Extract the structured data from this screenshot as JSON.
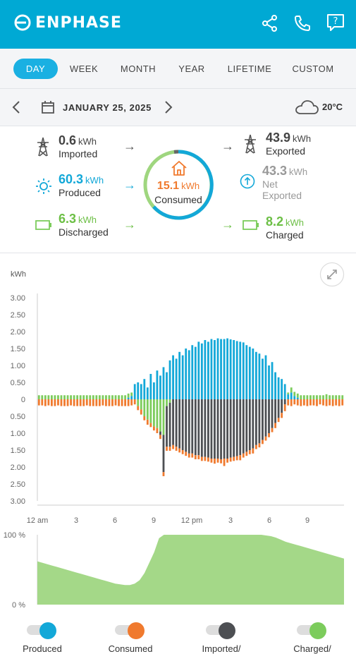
{
  "header": {
    "brand": "ENPHASE",
    "icons": [
      "share-icon",
      "phone-icon",
      "help-icon"
    ]
  },
  "tabs": [
    {
      "label": "DAY",
      "active": true
    },
    {
      "label": "WEEK",
      "active": false
    },
    {
      "label": "MONTH",
      "active": false
    },
    {
      "label": "YEAR",
      "active": false
    },
    {
      "label": "LIFETIME",
      "active": false
    },
    {
      "label": "CUSTOM",
      "active": false
    }
  ],
  "date_bar": {
    "date": "JANUARY 25, 2025",
    "temperature": "20°C"
  },
  "summary": {
    "imported": {
      "value": "0.6",
      "unit": "kWh",
      "label": "Imported"
    },
    "produced": {
      "value": "60.3",
      "unit": "kWh",
      "label": "Produced"
    },
    "discharged": {
      "value": "6.3",
      "unit": "kWh",
      "label": "Discharged"
    },
    "consumed": {
      "value": "15.1",
      "unit": "kWh",
      "label": "Consumed"
    },
    "exported": {
      "value": "43.9",
      "unit": "kWh",
      "label": "Exported"
    },
    "net_exported": {
      "value": "43.3",
      "unit": "kWh",
      "label_line1": "Net",
      "label_line2": "Exported"
    },
    "charged": {
      "value": "8.2",
      "unit": "kWh",
      "label": "Charged"
    }
  },
  "colors": {
    "produced": "#13a8d8",
    "consumed": "#f07a2e",
    "imported": "#4d4f53",
    "charged": "#7ccc5c",
    "header": "#00a9d4"
  },
  "chart_data": [
    {
      "type": "bar",
      "ylabel": "kWh",
      "yticks": [
        "3.00",
        "2.50",
        "2.00",
        "1.50",
        "1.00",
        "0.50",
        "0",
        "0.50",
        "1.00",
        "1.50",
        "2.00",
        "2.50",
        "3.00"
      ],
      "xticks": [
        "12 am",
        "3",
        "6",
        "9",
        "12 pm",
        "3",
        "6",
        "9"
      ],
      "ylim": [
        -3,
        3
      ],
      "x_start_hour": 0,
      "x_step_minutes": 15,
      "series": [
        {
          "name": "Produced",
          "values": [
            0,
            0,
            0,
            0,
            0,
            0,
            0,
            0,
            0,
            0,
            0,
            0,
            0,
            0,
            0,
            0,
            0,
            0,
            0,
            0,
            0,
            0,
            0,
            0,
            0,
            0,
            0,
            0,
            0.05,
            0.1,
            0.45,
            0.5,
            0.45,
            0.6,
            0.35,
            0.75,
            0.5,
            0.85,
            0.7,
            0.95,
            0.8,
            1.15,
            1.3,
            1.2,
            1.4,
            1.3,
            1.5,
            1.45,
            1.6,
            1.55,
            1.7,
            1.65,
            1.75,
            1.7,
            1.78,
            1.75,
            1.8,
            1.78,
            1.78,
            1.8,
            1.77,
            1.75,
            1.72,
            1.7,
            1.68,
            1.6,
            1.55,
            1.5,
            1.4,
            1.35,
            1.2,
            1.3,
            1.0,
            1.1,
            0.8,
            0.65,
            0.6,
            0.45,
            0.15,
            0.2,
            0.1,
            0.05,
            0,
            0,
            0,
            0,
            0,
            0,
            0,
            0,
            0,
            0,
            0,
            0,
            0,
            0
          ]
        },
        {
          "name": "Consumed",
          "values": [
            -0.18,
            -0.18,
            -0.2,
            -0.18,
            -0.2,
            -0.2,
            -0.18,
            -0.2,
            -0.2,
            -0.2,
            -0.18,
            -0.2,
            -0.2,
            -0.2,
            -0.2,
            -0.18,
            -0.2,
            -0.2,
            -0.2,
            -0.2,
            -0.18,
            -0.2,
            -0.2,
            -0.2,
            -0.18,
            -0.2,
            -0.2,
            -0.2,
            -0.2,
            -0.18,
            -0.15,
            -0.12,
            -0.15,
            -0.12,
            -0.15,
            -0.12,
            -0.12,
            -0.15,
            -0.12,
            -0.12,
            -0.12,
            -0.12,
            -0.12,
            -0.12,
            -0.12,
            -0.12,
            -0.12,
            -0.12,
            -0.12,
            -0.12,
            -0.12,
            -0.12,
            -0.12,
            -0.12,
            -0.12,
            -0.15,
            -0.12,
            -0.12,
            -0.22,
            -0.12,
            -0.12,
            -0.12,
            -0.12,
            -0.15,
            -0.12,
            -0.12,
            -0.12,
            -0.15,
            -0.12,
            -0.12,
            -0.12,
            -0.12,
            -0.12,
            -0.12,
            -0.15,
            -0.12,
            -0.15,
            -0.2,
            -0.18,
            -0.2,
            -0.15,
            -0.18,
            -0.2,
            -0.18,
            -0.2,
            -0.18,
            -0.18,
            -0.2,
            -0.15,
            -0.18,
            -0.2,
            -0.18,
            -0.2,
            -0.18,
            -0.2,
            -0.18
          ]
        },
        {
          "name": "Imported/Exported",
          "values": [
            0,
            0,
            0,
            0,
            0,
            0,
            0,
            0,
            0,
            0,
            0,
            0,
            0,
            0,
            0,
            0,
            0,
            0,
            0,
            0,
            0,
            0,
            0,
            0,
            0,
            0,
            0,
            0,
            0,
            0,
            0,
            0,
            0,
            0,
            0,
            0,
            0,
            0,
            -0.1,
            -1.1,
            -1.2,
            -1.3,
            -1.35,
            -1.4,
            -1.45,
            -1.5,
            -1.55,
            -1.6,
            -1.6,
            -1.65,
            -1.65,
            -1.7,
            -1.7,
            -1.72,
            -1.75,
            -1.75,
            -1.75,
            -1.77,
            -1.75,
            -1.75,
            -1.72,
            -1.7,
            -1.68,
            -1.65,
            -1.6,
            -1.55,
            -1.5,
            -1.45,
            -1.35,
            -1.3,
            -1.2,
            -1.1,
            -1.0,
            -0.85,
            -0.7,
            -0.55,
            -0.4,
            -0.15,
            0,
            0,
            0,
            0,
            0,
            0,
            0,
            0,
            0,
            0,
            0,
            0,
            0,
            0,
            0,
            0,
            0,
            0
          ]
        },
        {
          "name": "Charged/Discharged",
          "values": [
            0.12,
            0.12,
            0.12,
            0.12,
            0.12,
            0.12,
            0.12,
            0.12,
            0.12,
            0.12,
            0.12,
            0.12,
            0.12,
            0.12,
            0.12,
            0.12,
            0.12,
            0.12,
            0.12,
            0.12,
            0.12,
            0.12,
            0.12,
            0.12,
            0.12,
            0.12,
            0.12,
            0.12,
            0.12,
            0.1,
            0,
            -0.2,
            -0.3,
            -0.5,
            -0.6,
            -0.7,
            -0.8,
            -0.85,
            -0.95,
            -1.05,
            -0.2,
            -0.1,
            0,
            0,
            0,
            0,
            0,
            0,
            0,
            0,
            0,
            0,
            0,
            0,
            0,
            0,
            0,
            0,
            0,
            0,
            0,
            0,
            0,
            0,
            0,
            0,
            0,
            0,
            0,
            0,
            0,
            0,
            0,
            0,
            0,
            0,
            0,
            0,
            0.05,
            0.15,
            0.12,
            0.12,
            0.12,
            0.12,
            0.12,
            0.12,
            0.12,
            0.12,
            0.12,
            0.12,
            0.15,
            0.12,
            0.12,
            0.12,
            0.12,
            0.12
          ]
        }
      ]
    },
    {
      "type": "area",
      "yticks": [
        "100 %",
        "0 %"
      ],
      "ylim": [
        0,
        100
      ],
      "values": [
        62,
        60,
        58,
        56,
        54,
        52,
        50,
        48,
        46,
        44,
        42,
        40,
        38,
        36,
        34,
        32,
        30,
        29,
        28,
        28,
        30,
        35,
        45,
        60,
        75,
        95,
        100,
        100,
        100,
        100,
        100,
        100,
        100,
        100,
        100,
        100,
        100,
        100,
        100,
        100,
        100,
        100,
        100,
        100,
        100,
        100,
        100,
        99,
        98,
        96,
        93,
        90,
        88,
        86,
        84,
        82,
        80,
        78,
        76,
        74,
        72,
        70,
        68,
        66
      ]
    }
  ],
  "legend": [
    {
      "label": "Produced",
      "color": "#13a8d8"
    },
    {
      "label": "Consumed",
      "color": "#f07a2e"
    },
    {
      "label": "Imported/",
      "color": "#4d4f53"
    },
    {
      "label": "Charged/",
      "color": "#7ccc5c"
    }
  ]
}
